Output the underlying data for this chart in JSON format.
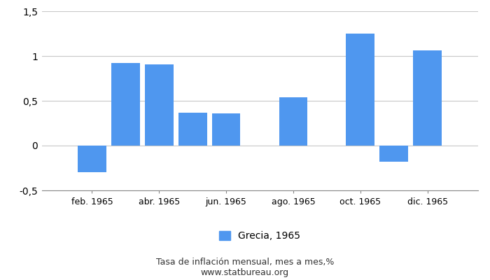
{
  "bar_indices": [
    2,
    3,
    4,
    5,
    6,
    8,
    10,
    11,
    12
  ],
  "values": [
    -0.3,
    0.92,
    0.91,
    0.37,
    0.36,
    0.54,
    1.25,
    -0.18,
    1.06
  ],
  "bar_color": "#4f97ef",
  "ylim": [
    -0.5,
    1.5
  ],
  "yticks": [
    -0.5,
    0.0,
    0.5,
    1.0,
    1.5
  ],
  "ytick_labels": [
    "-0,5",
    "0",
    "0,5",
    "1",
    "1,5"
  ],
  "xlim": [
    0.5,
    13.5
  ],
  "xtick_positions": [
    2,
    4,
    6,
    8,
    10,
    12
  ],
  "xtick_labels": [
    "feb. 1965",
    "abr. 1965",
    "jun. 1965",
    "ago. 1965",
    "oct. 1965",
    "dic. 1965"
  ],
  "legend_label": "Grecia, 1965",
  "footnote_line1": "Tasa de inflación mensual, mes a mes,%",
  "footnote_line2": "www.statbureau.org",
  "background_color": "#ffffff",
  "grid_color": "#c8c8c8",
  "bar_width": 0.85
}
